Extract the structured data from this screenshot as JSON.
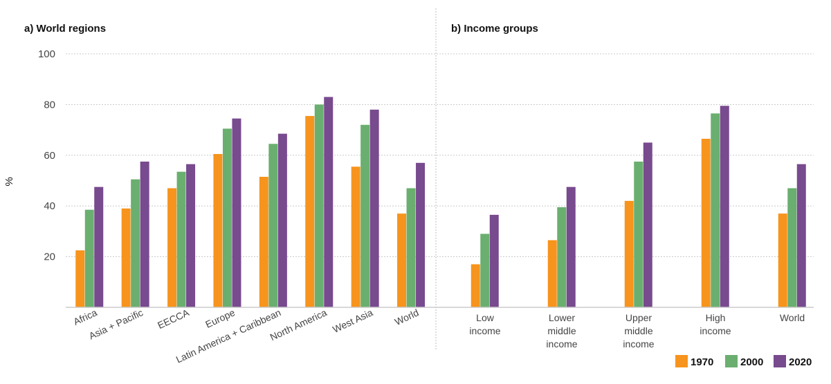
{
  "ylabel": "%",
  "legend": [
    {
      "name": "1970",
      "color": "#F7941D"
    },
    {
      "name": "2000",
      "color": "#6AAF6F"
    },
    {
      "name": "2020",
      "color": "#784A8E"
    }
  ],
  "chart_data": [
    {
      "type": "bar",
      "title": "a) World regions",
      "ylabel": "%",
      "ylim": [
        0,
        100
      ],
      "yticks": [
        20,
        40,
        60,
        80,
        100
      ],
      "grid": true,
      "legend_position": "bottom-right",
      "categories": [
        "Africa",
        "Asia + Pacific",
        "EECCA",
        "Europe",
        "Latin America + Caribbean",
        "North America",
        "West Asia",
        "World"
      ],
      "series": [
        {
          "name": "1970",
          "values": [
            22.5,
            39,
            47,
            60.5,
            51.5,
            75.5,
            55.5,
            37
          ]
        },
        {
          "name": "2000",
          "values": [
            38.5,
            50.5,
            53.5,
            70.5,
            64.5,
            80,
            72,
            47
          ]
        },
        {
          "name": "2020",
          "values": [
            47.5,
            57.5,
            56.5,
            74.5,
            68.5,
            83,
            78,
            57
          ]
        }
      ]
    },
    {
      "type": "bar",
      "title": "b) Income groups",
      "ylim": [
        0,
        100
      ],
      "grid": true,
      "legend_position": "bottom-right",
      "categories": [
        [
          "Low",
          "income"
        ],
        [
          "Lower",
          "middle",
          "income"
        ],
        [
          "Upper",
          "middle",
          "income"
        ],
        [
          "High",
          "income"
        ],
        [
          "World"
        ]
      ],
      "series": [
        {
          "name": "1970",
          "values": [
            17,
            26.5,
            42,
            66.5,
            37
          ]
        },
        {
          "name": "2000",
          "values": [
            29,
            39.5,
            57.5,
            76.5,
            47
          ]
        },
        {
          "name": "2020",
          "values": [
            36.5,
            47.5,
            65,
            79.5,
            56.5
          ]
        }
      ]
    }
  ]
}
